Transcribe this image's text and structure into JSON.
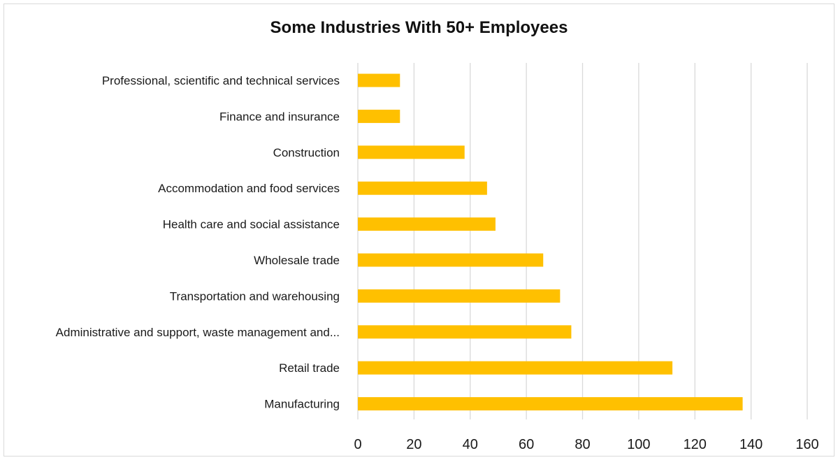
{
  "chart_data": {
    "type": "bar",
    "orientation": "horizontal",
    "title": "Some Industries With 50+ Employees",
    "xlabel": "",
    "ylabel": "",
    "categories": [
      "Professional, scientific and technical services",
      "Finance and insurance",
      "Construction",
      "Accommodation and food services",
      "Health care and social assistance",
      "Wholesale trade",
      "Transportation and warehousing",
      "Administrative and support, waste management and...",
      "Retail trade",
      "Manufacturing"
    ],
    "values": [
      15,
      15,
      38,
      46,
      49,
      66,
      72,
      76,
      112,
      137
    ],
    "xlim": [
      0,
      160
    ],
    "xticks": [
      "0",
      "20",
      "40",
      "60",
      "80",
      "100",
      "120",
      "140",
      "160"
    ],
    "grid": "vertical",
    "legend": "none",
    "bar_color": "#FFC000",
    "grid_color": "#d9d9d9"
  }
}
